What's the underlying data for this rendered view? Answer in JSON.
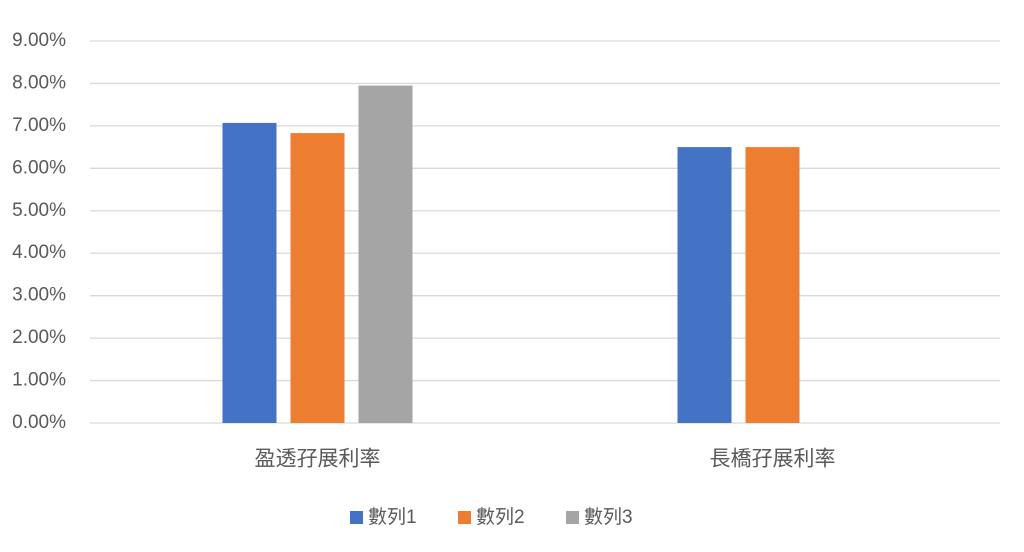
{
  "chart_data": {
    "type": "bar",
    "categories": [
      "盈透孖展利率",
      "長橋孖展利率"
    ],
    "series": [
      {
        "name": "數列1",
        "color": "#4472c4",
        "values": [
          7.07,
          6.5
        ]
      },
      {
        "name": "數列2",
        "color": "#ed7d31",
        "values": [
          6.83,
          6.5
        ]
      },
      {
        "name": "數列3",
        "color": "#a5a5a5",
        "values": [
          7.95,
          null
        ]
      }
    ],
    "ylim": [
      0,
      9
    ],
    "yticks": [
      {
        "value": 0,
        "label": "0.00%"
      },
      {
        "value": 1,
        "label": "1.00%"
      },
      {
        "value": 2,
        "label": "2.00%"
      },
      {
        "value": 3,
        "label": "3.00%"
      },
      {
        "value": 4,
        "label": "4.00%"
      },
      {
        "value": 5,
        "label": "5.00%"
      },
      {
        "value": 6,
        "label": "6.00%"
      },
      {
        "value": 7,
        "label": "7.00%"
      },
      {
        "value": 8,
        "label": "8.00%"
      },
      {
        "value": 9,
        "label": "9.00%"
      }
    ],
    "grid": true,
    "legend": "bottom"
  }
}
